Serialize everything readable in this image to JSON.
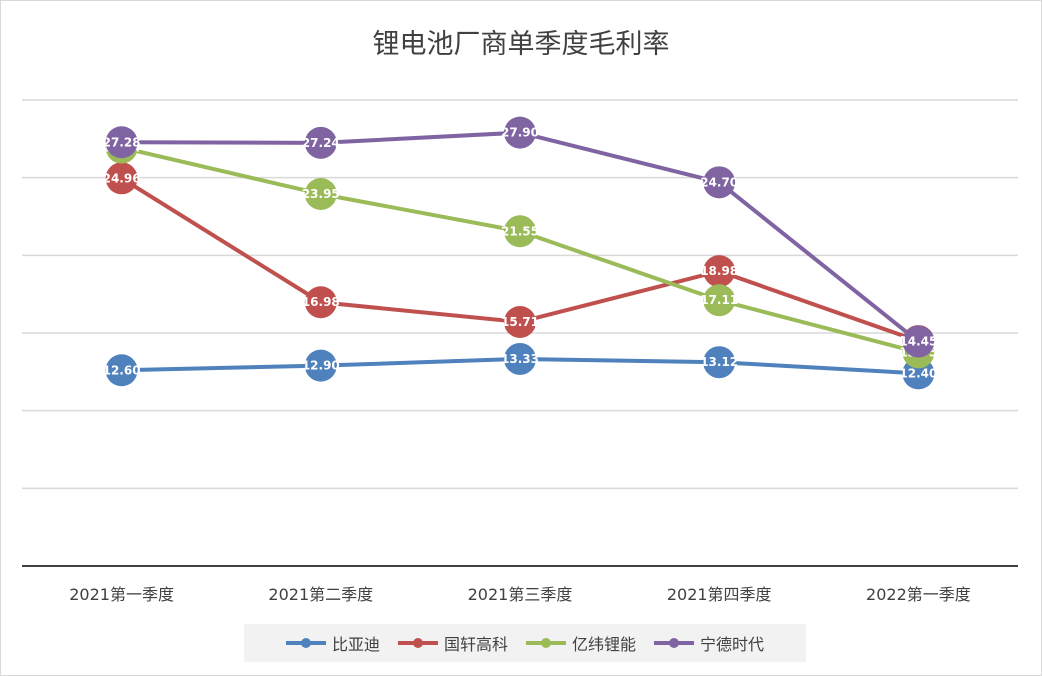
{
  "chart_data": {
    "type": "line",
    "title": "锂电池厂商单季度毛利率",
    "categories": [
      "2021第一季度",
      "2021第二季度",
      "2021第三季度",
      "2021第四季度",
      "2022第一季度"
    ],
    "ylim": [
      0,
      30
    ],
    "grid": true,
    "legend": "bottom",
    "series": [
      {
        "name": "比亚迪",
        "color": "#4f81bd",
        "values": [
          12.6,
          12.9,
          13.33,
          13.12,
          12.4
        ]
      },
      {
        "name": "国轩高科",
        "color": "#c0504d",
        "values": [
          24.96,
          16.98,
          15.71,
          18.98,
          14.48
        ]
      },
      {
        "name": "亿纬锂能",
        "color": "#9bbb59",
        "values": [
          26.94,
          23.95,
          21.55,
          17.11,
          13.75
        ]
      },
      {
        "name": "宁德时代",
        "color": "#8064a2",
        "values": [
          27.28,
          27.24,
          27.9,
          24.7,
          14.45
        ]
      }
    ]
  }
}
